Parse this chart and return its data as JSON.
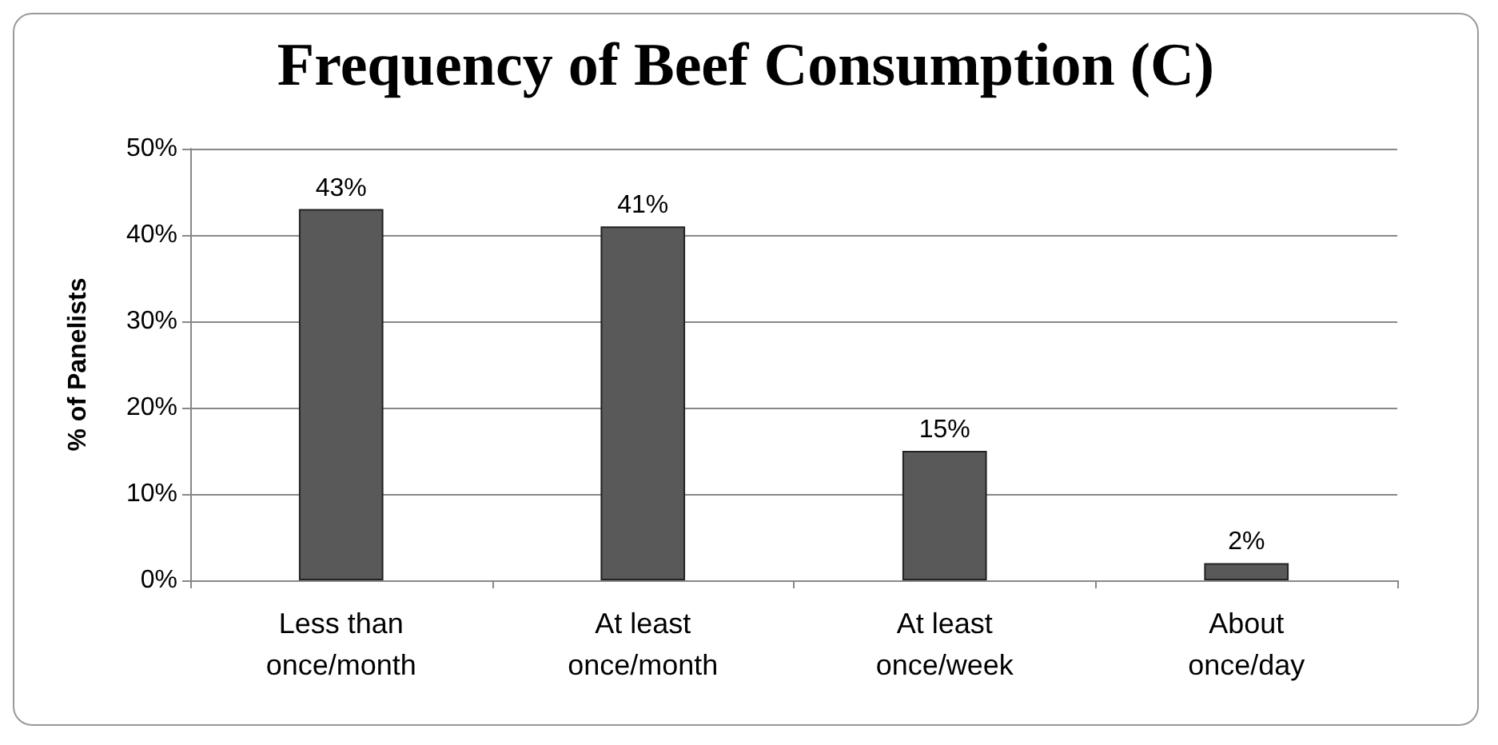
{
  "chart_data": {
    "type": "bar",
    "title": "Frequency of Beef Consumption (C)",
    "ylabel": "% of Panelists",
    "categories": [
      "Less than\nonce/month",
      "At least\nonce/month",
      "At least\nonce/week",
      "About\nonce/day"
    ],
    "values": [
      43,
      41,
      15,
      2
    ],
    "color": "#595959",
    "value_labels": [
      "43%",
      "41%",
      "15%",
      "2%"
    ],
    "ylim": [
      0,
      50
    ],
    "yticks": [
      {
        "value": 0,
        "label": "0%"
      },
      {
        "value": 10,
        "label": "10%"
      },
      {
        "value": 20,
        "label": "20%"
      },
      {
        "value": 30,
        "label": "30%"
      },
      {
        "value": 40,
        "label": "40%"
      },
      {
        "value": 50,
        "label": "50%"
      }
    ],
    "grid": "y"
  }
}
